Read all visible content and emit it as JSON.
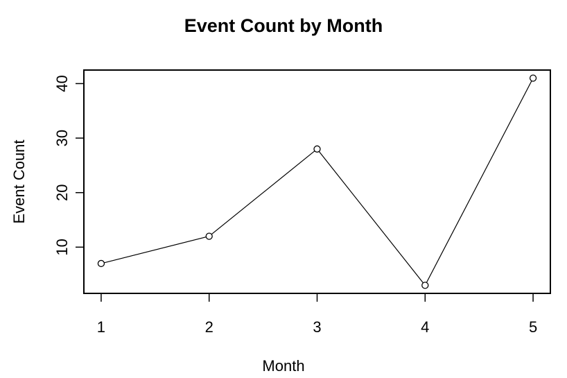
{
  "chart_data": {
    "type": "line",
    "title": "Event Count by Month",
    "xlabel": "Month",
    "ylabel": "Event Count",
    "x": [
      1,
      2,
      3,
      4,
      5
    ],
    "series": [
      {
        "values": [
          7,
          12,
          28,
          3,
          41
        ]
      }
    ],
    "xticks": [
      "1",
      "2",
      "3",
      "4",
      "5"
    ],
    "yticks": [
      "10",
      "20",
      "30",
      "40"
    ],
    "xlim": [
      0.84,
      5.16
    ],
    "ylim": [
      1.52,
      42.48
    ],
    "grid": false,
    "marker": "open-circle",
    "colors": {
      "line": "#000000",
      "axis": "#000000"
    }
  }
}
